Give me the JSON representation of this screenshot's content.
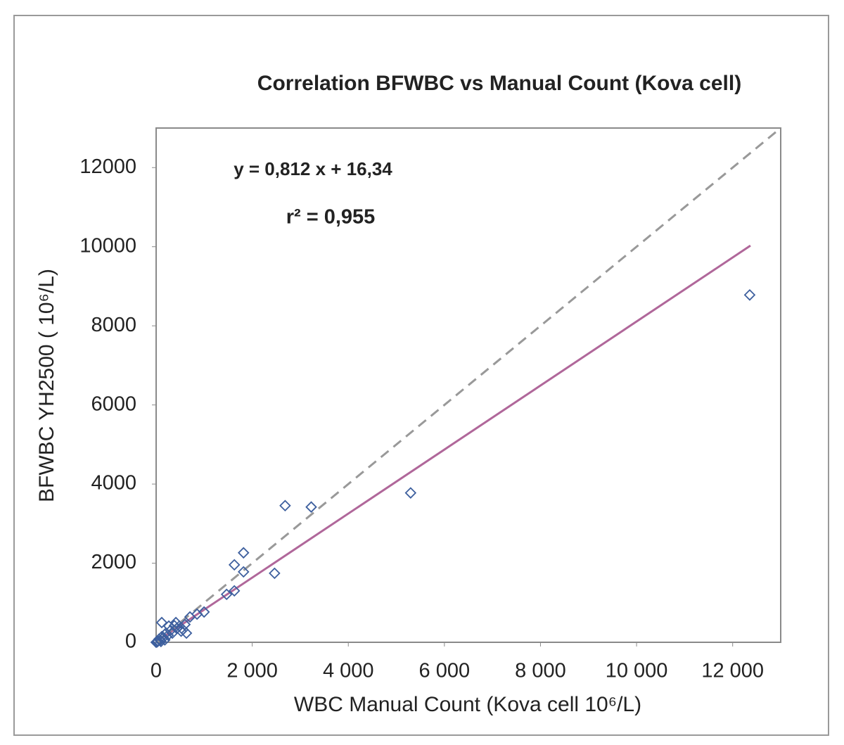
{
  "chart_data": {
    "type": "scatter",
    "title": "Correlation BFWBC vs Manual Count (Kova cell)",
    "annotations": [
      "y = 0,812 x + 16,34",
      "r² = 0,955"
    ],
    "xlabel": "WBC Manual Count  (Kova cell  10⁶/L)",
    "ylabel": "BFWBC YH2500 ( 10⁶/L)",
    "xlim": [
      0,
      13000
    ],
    "ylim": [
      0,
      13000
    ],
    "xticks": [
      0,
      {
        "value": 2000,
        "label": "2 000"
      },
      {
        "value": 4000,
        "label": "4 000"
      },
      {
        "value": 6000,
        "label": "6 000"
      },
      {
        "value": 8000,
        "label": "8 000"
      },
      {
        "value": 10000,
        "label": "10 000"
      },
      {
        "value": 12000,
        "label": "12 000"
      }
    ],
    "yticks": [
      0,
      2000,
      4000,
      6000,
      8000,
      10000,
      12000
    ],
    "series": [
      {
        "color": "#3d5f9e",
        "x": [
          12355,
          5297,
          3228,
          2685,
          1819,
          1628,
          1819,
          2465,
          1628,
          1467,
          998,
          851,
          704,
          631,
          484,
          411,
          264,
          117,
          117,
          0,
          337,
          558,
          88,
          205,
          40,
          60,
          150,
          180,
          300,
          380,
          430,
          520,
          600,
          250,
          20,
          100
        ],
        "values": [
          8780,
          3776,
          3420,
          3455,
          2262,
          1959,
          1781,
          1745,
          1300,
          1211,
          766,
          712,
          641,
          232,
          410,
          499,
          410,
          499,
          142,
          0,
          232,
          321,
          53,
          232,
          30,
          80,
          120,
          60,
          300,
          420,
          350,
          280,
          450,
          180,
          10,
          20
        ]
      }
    ],
    "lines": [
      {
        "color": "#b0679a",
        "x": [
          0,
          12370
        ],
        "values": [
          16.34,
          10027
        ]
      },
      {
        "color": "#999999",
        "dash": true,
        "x": [
          0,
          13000
        ],
        "values": [
          0,
          13000
        ]
      }
    ]
  }
}
